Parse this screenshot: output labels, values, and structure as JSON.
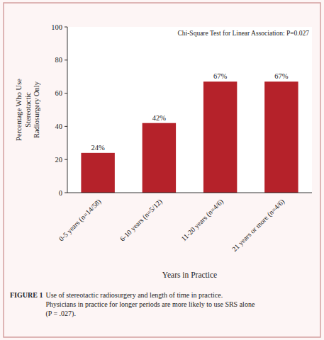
{
  "chart_data": {
    "type": "bar",
    "categories": [
      "0-5 years (n=14/58)",
      "6-10 years (n=5/12)",
      "11-20 years (n=4/6)",
      "21 years or more (n=4/6)"
    ],
    "values": [
      24,
      42,
      67,
      67
    ],
    "value_labels": [
      "24%",
      "42%",
      "67%",
      "67%"
    ],
    "data_labels": true,
    "color": "#b5222a",
    "ylim": [
      0,
      100
    ],
    "yticks": [
      0,
      20,
      40,
      60,
      80,
      100
    ],
    "y_label": "Percentage Who Use\nStereotactic\nRadiosurgery Only",
    "x_label": "Years in Practice",
    "annotation": "Chi-Square Test for Linear Association: P=0.027",
    "caption_label": "FIGURE 1",
    "caption": "Use of stereotactic radiosurgery and length of time in practice.\nPhysicians in practice for longer periods are more likely to use SRS alone\n(P = .027)."
  }
}
